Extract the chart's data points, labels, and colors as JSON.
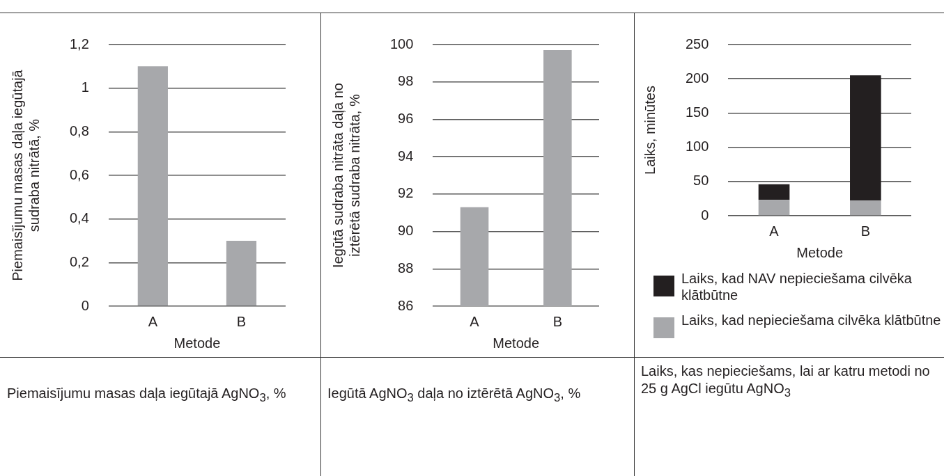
{
  "chart_data": [
    {
      "type": "bar",
      "title": "Piemaisījumu masas daļa iegūtajā AgNO$_{3}$, %",
      "xlabel": "Metode",
      "ylabel": "Piemaisījumu masas daļa iegūtajā sudraba nitrātā, %",
      "categories": [
        "A",
        "B"
      ],
      "values": [
        1.1,
        0.3
      ],
      "color": "#a7a8ab",
      "ylim": [
        0,
        1.2
      ],
      "yticks": [
        0,
        {
          "value": 0.2,
          "label": "0,2"
        },
        {
          "value": 0.4,
          "label": "0,4"
        },
        {
          "value": 0.6,
          "label": "0,6"
        },
        {
          "value": 0.8,
          "label": "0,8"
        },
        1,
        {
          "value": 1.2,
          "label": "1,2"
        }
      ],
      "grid": "y"
    },
    {
      "type": "bar",
      "title": "Iegūtā AgNO$_{3}$ daļa no iztērētā AgNO$_{3}$, %",
      "xlabel": "Metode",
      "ylabel": "Iegūtā sudraba nitrāta daļa no iztērētā sudraba nitrāta, %",
      "categories": [
        "A",
        "B"
      ],
      "values": [
        91.3,
        99.7
      ],
      "color": "#a7a8ab",
      "ylim": [
        86,
        100
      ],
      "yticks": [
        86,
        88,
        90,
        92,
        94,
        96,
        98,
        100
      ],
      "grid": "y"
    },
    {
      "type": "bar",
      "title": "Laiks, kas nepieciešams, lai ar katru metodi no 25 g AgCl iegūtu AgNO$_{3}$",
      "xlabel": "Metode",
      "ylabel": "Laiks, minūtes",
      "categories": [
        "A",
        "B"
      ],
      "stacked": true,
      "legend": "bottom",
      "series": [
        {
          "name": "Laiks, kad nepieciešama cilvēka klātbūtne",
          "color": "#a7a8ab",
          "values": [
            23,
            22
          ]
        },
        {
          "name": "Laiks, kad NAV nepieciešama cilvēka klātbūtne",
          "color": "#231f20",
          "values": [
            23,
            183
          ]
        }
      ],
      "ylim": [
        0,
        250
      ],
      "yticks": [
        0,
        50,
        100,
        150,
        200,
        250
      ],
      "grid": "y"
    }
  ]
}
